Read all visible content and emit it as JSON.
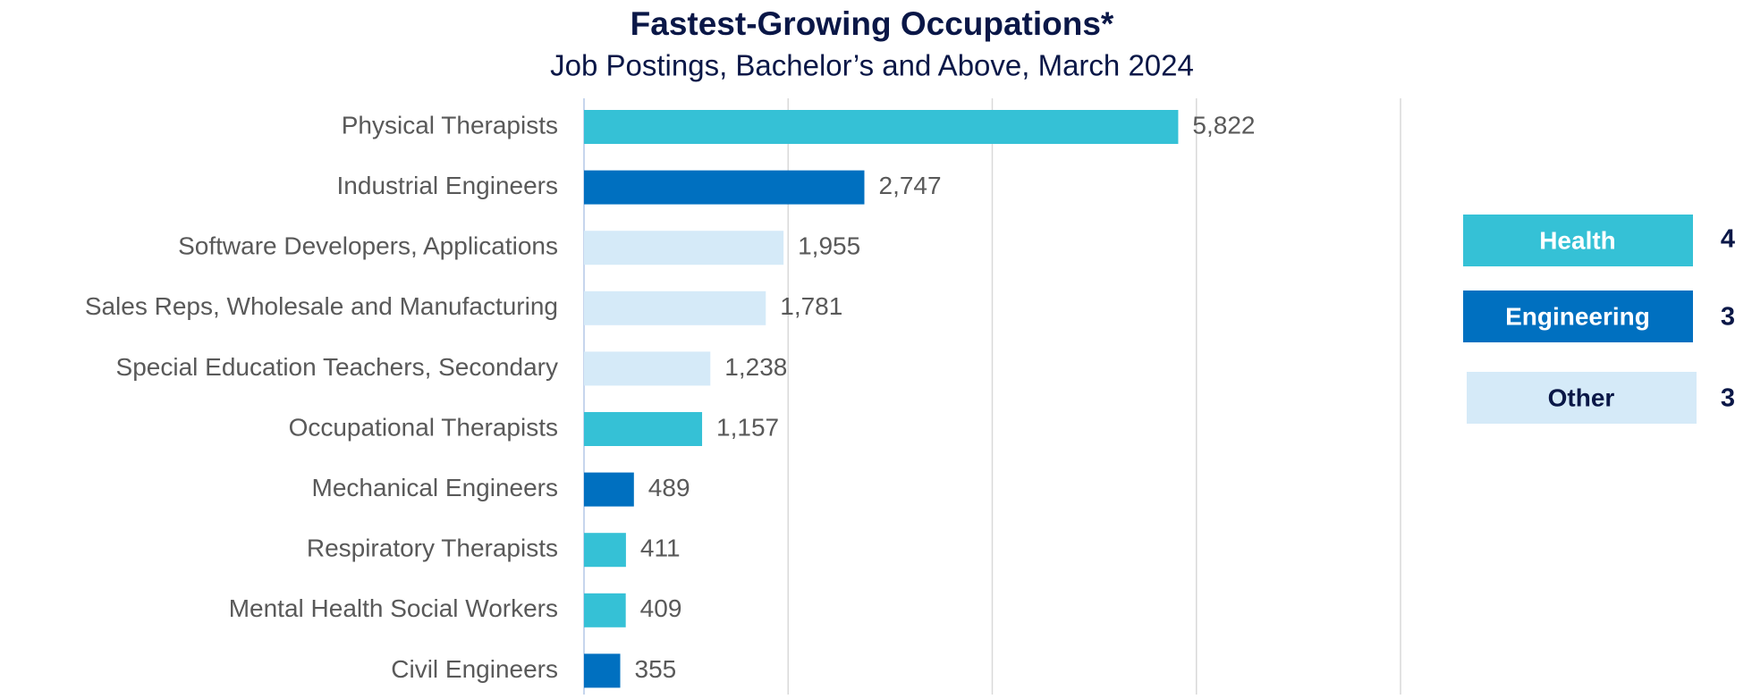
{
  "chart_data": {
    "type": "bar",
    "orientation": "horizontal",
    "title": "Fastest-Growing Occupations*",
    "subtitle": "Job Postings, Bachelor’s and Above, March 2024",
    "categories": [
      "Physical Therapists",
      "Industrial Engineers",
      "Software Developers, Applications",
      "Sales Reps, Wholesale and Manufacturing",
      "Special Education Teachers, Secondary",
      "Occupational Therapists",
      "Mechanical Engineers",
      "Respiratory Therapists",
      "Mental Health Social Workers",
      "Civil Engineers"
    ],
    "values": [
      5822,
      2747,
      1955,
      1781,
      1238,
      1157,
      489,
      411,
      409,
      355
    ],
    "value_labels": [
      "5,822",
      "2,747",
      "1,955",
      "1,781",
      "1,238",
      "1,157",
      "489",
      "411",
      "409",
      "355"
    ],
    "colors": [
      "#35c1d6",
      "#0070c0",
      "#d5eaf8",
      "#d5eaf8",
      "#d5eaf8",
      "#35c1d6",
      "#0070c0",
      "#35c1d6",
      "#35c1d6",
      "#0070c0"
    ],
    "xlim": [
      0,
      8000
    ],
    "xticks": [
      0,
      2000,
      4000,
      6000,
      8000
    ],
    "grid": true,
    "legend": [
      {
        "name": "Health",
        "color": "#35c1d6",
        "text_color": "#ffffff",
        "count": 4
      },
      {
        "name": "Engineering",
        "color": "#0070c0",
        "text_color": "#ffffff",
        "count": 3
      },
      {
        "name": "Other",
        "color": "#d5eaf8",
        "text_color": "#0a1747",
        "count": 3
      }
    ]
  }
}
